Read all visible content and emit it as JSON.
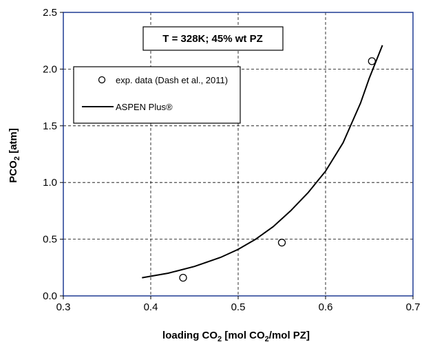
{
  "chart_data": {
    "type": "scatter",
    "xlabel_main": "loading CO",
    "xlabel_sub1": "2",
    "xlabel_mid": " [mol CO",
    "xlabel_sub2": "2",
    "xlabel_end": "/mol PZ]",
    "ylabel_main": "PCO",
    "ylabel_sub": "2",
    "ylabel_end": " [atm]",
    "xlim": [
      0.3,
      0.7
    ],
    "ylim": [
      0.0,
      2.5
    ],
    "x_ticks": [
      "0.3",
      "0.4",
      "0.5",
      "0.6",
      "0.7"
    ],
    "y_ticks": [
      "0.0",
      "0.5",
      "1.0",
      "1.5",
      "2.0",
      "2.5"
    ],
    "x_tick_values": [
      0.3,
      0.4,
      0.5,
      0.6,
      0.7
    ],
    "y_tick_values": [
      0.0,
      0.5,
      1.0,
      1.5,
      2.0,
      2.5
    ],
    "grid": true,
    "annotation": "T = 328K; 45% wt PZ",
    "legend_position": "top-left",
    "series": [
      {
        "name": "exp. data (Dash et al., 2011)",
        "style": "open-circle",
        "points": [
          {
            "x": 0.437,
            "y": 0.16
          },
          {
            "x": 0.55,
            "y": 0.47
          },
          {
            "x": 0.653,
            "y": 2.07
          }
        ]
      },
      {
        "name": "ASPEN Plus®",
        "style": "line",
        "points": [
          {
            "x": 0.39,
            "y": 0.16
          },
          {
            "x": 0.42,
            "y": 0.2
          },
          {
            "x": 0.45,
            "y": 0.26
          },
          {
            "x": 0.48,
            "y": 0.34
          },
          {
            "x": 0.5,
            "y": 0.41
          },
          {
            "x": 0.52,
            "y": 0.5
          },
          {
            "x": 0.54,
            "y": 0.61
          },
          {
            "x": 0.56,
            "y": 0.75
          },
          {
            "x": 0.58,
            "y": 0.91
          },
          {
            "x": 0.6,
            "y": 1.1
          },
          {
            "x": 0.62,
            "y": 1.35
          },
          {
            "x": 0.64,
            "y": 1.7
          },
          {
            "x": 0.65,
            "y": 1.92
          },
          {
            "x": 0.665,
            "y": 2.21
          }
        ]
      }
    ],
    "colors": {
      "line": "#000000",
      "grid": "#000000",
      "frame": "#1f3a93"
    }
  }
}
